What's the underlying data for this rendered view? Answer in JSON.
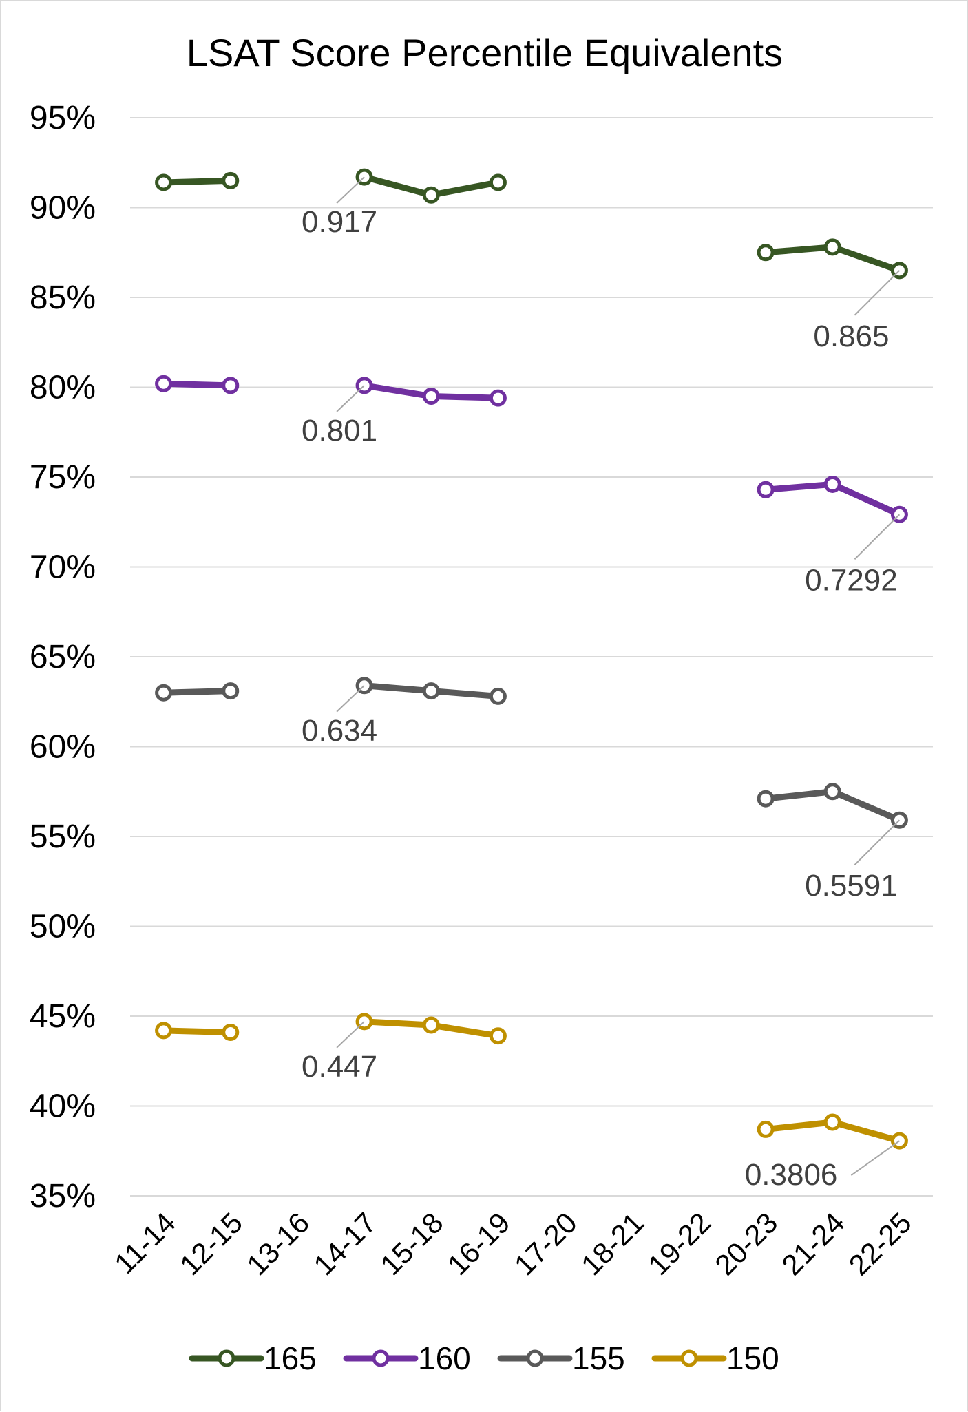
{
  "chart_data": {
    "type": "line",
    "title": "LSAT Score Percentile Equivalents",
    "xlabel": "",
    "ylabel": "",
    "categories": [
      "11-14",
      "12-15",
      "13-16",
      "14-17",
      "15-18",
      "16-19",
      "17-20",
      "18-21",
      "19-22",
      "20-23",
      "21-24",
      "22-25"
    ],
    "ylim": [
      0.35,
      0.95
    ],
    "y_ticks": [
      0.95,
      0.9,
      0.85,
      0.8,
      0.75,
      0.7,
      0.65,
      0.6,
      0.55,
      0.5,
      0.45,
      0.4,
      0.35
    ],
    "y_tick_labels": [
      "95%",
      "90%",
      "85%",
      "80%",
      "75%",
      "70%",
      "65%",
      "60%",
      "55%",
      "50%",
      "45%",
      "40%",
      "35%"
    ],
    "grid": true,
    "legend_position": "bottom",
    "series": [
      {
        "name": "165",
        "color": "#375623",
        "values": [
          0.914,
          0.915,
          null,
          0.917,
          0.907,
          0.914,
          null,
          null,
          null,
          0.875,
          0.878,
          0.865
        ],
        "data_labels": [
          {
            "index": 3,
            "text": "0.917"
          },
          {
            "index": 11,
            "text": "0.865"
          }
        ]
      },
      {
        "name": "160",
        "color": "#7030A0",
        "values": [
          0.802,
          0.801,
          null,
          0.801,
          0.795,
          0.794,
          null,
          null,
          null,
          0.743,
          0.746,
          0.7292
        ],
        "data_labels": [
          {
            "index": 3,
            "text": "0.801"
          },
          {
            "index": 11,
            "text": "0.7292"
          }
        ]
      },
      {
        "name": "155",
        "color": "#595959",
        "values": [
          0.63,
          0.631,
          null,
          0.634,
          0.631,
          0.628,
          null,
          null,
          null,
          0.571,
          0.575,
          0.5591
        ],
        "data_labels": [
          {
            "index": 3,
            "text": "0.634"
          },
          {
            "index": 11,
            "text": "0.5591"
          }
        ]
      },
      {
        "name": "150",
        "color": "#BF9000",
        "values": [
          0.442,
          0.441,
          null,
          0.447,
          0.445,
          0.439,
          null,
          null,
          null,
          0.387,
          0.391,
          0.3806
        ],
        "data_labels": [
          {
            "index": 3,
            "text": "0.447"
          },
          {
            "index": 11,
            "text": "0.3806"
          }
        ]
      }
    ]
  }
}
